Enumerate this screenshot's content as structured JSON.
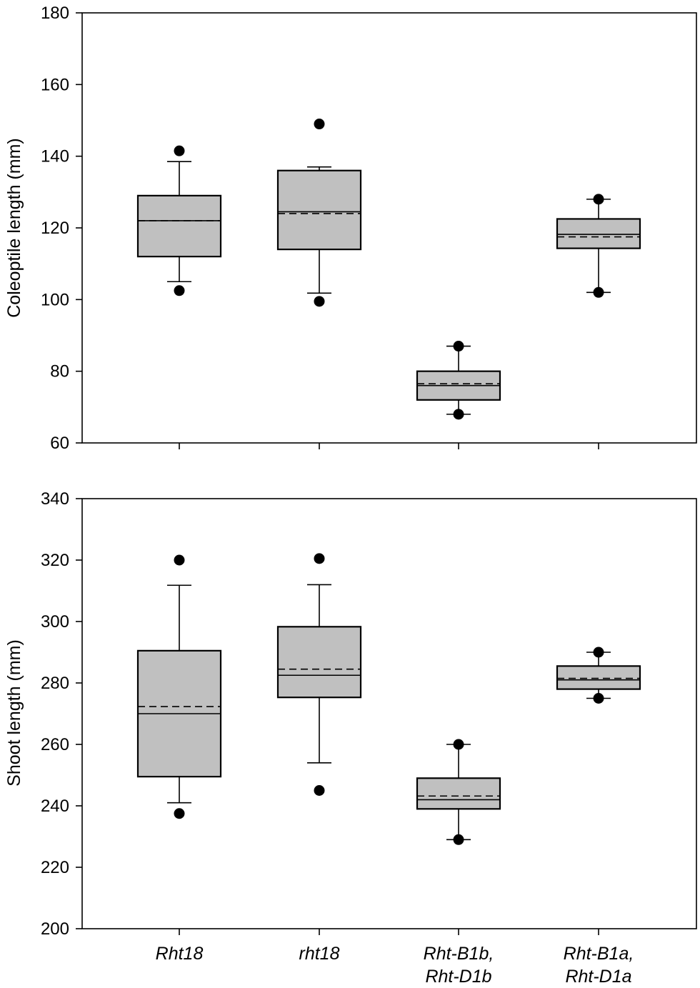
{
  "chart_data": [
    {
      "type": "box",
      "ylabel": "Coleoptile length (mm)",
      "ylim": [
        60,
        180
      ],
      "yticks": [
        60,
        80,
        100,
        120,
        140,
        160,
        180
      ],
      "categories": [
        "Rht18",
        "rht18",
        "Rht-B1b,\nRht-D1b",
        "Rht-B1a,\nRht-D1a"
      ],
      "show_category_labels": false,
      "boxes": [
        {
          "whisker_low": 105,
          "q1": 112,
          "median": 122,
          "mean": 122,
          "q3": 129,
          "whisker_high": 138.5,
          "outliers": [
            102.5,
            141.5
          ]
        },
        {
          "whisker_low": 101.8,
          "q1": 114,
          "median": 124.5,
          "mean": 124,
          "q3": 136,
          "whisker_high": 137,
          "outliers": [
            99.5,
            149
          ]
        },
        {
          "whisker_low": 68,
          "q1": 72,
          "median": 76,
          "mean": 76.5,
          "q3": 80,
          "whisker_high": 87,
          "outliers": [
            68,
            87
          ]
        },
        {
          "whisker_low": 102,
          "q1": 114.3,
          "median": 118.2,
          "mean": 117.5,
          "q3": 122.5,
          "whisker_high": 128,
          "outliers": [
            102,
            128
          ]
        }
      ],
      "box_color": "#c0c0c0"
    },
    {
      "type": "box",
      "ylabel": "Shoot length (mm)",
      "ylim": [
        200,
        340
      ],
      "yticks": [
        200,
        220,
        240,
        260,
        280,
        300,
        320,
        340
      ],
      "categories": [
        "Rht18",
        "rht18",
        "Rht-B1b,\nRht-D1b",
        "Rht-B1a,\nRht-D1a"
      ],
      "show_category_labels": true,
      "boxes": [
        {
          "whisker_low": 241,
          "q1": 249.5,
          "median": 270,
          "mean": 272.3,
          "q3": 290.5,
          "whisker_high": 311.8,
          "outliers": [
            237.5,
            320
          ]
        },
        {
          "whisker_low": 254,
          "q1": 275.3,
          "median": 282.5,
          "mean": 284.5,
          "q3": 298.3,
          "whisker_high": 312,
          "outliers": [
            245,
            320.5
          ]
        },
        {
          "whisker_low": 229,
          "q1": 239,
          "median": 242,
          "mean": 243.2,
          "q3": 249,
          "whisker_high": 260,
          "outliers": [
            229,
            260
          ]
        },
        {
          "whisker_low": 275,
          "q1": 278,
          "median": 281,
          "mean": 281.5,
          "q3": 285.5,
          "whisker_high": 290,
          "outliers": [
            275,
            290
          ]
        }
      ],
      "box_color": "#c0c0c0"
    }
  ]
}
